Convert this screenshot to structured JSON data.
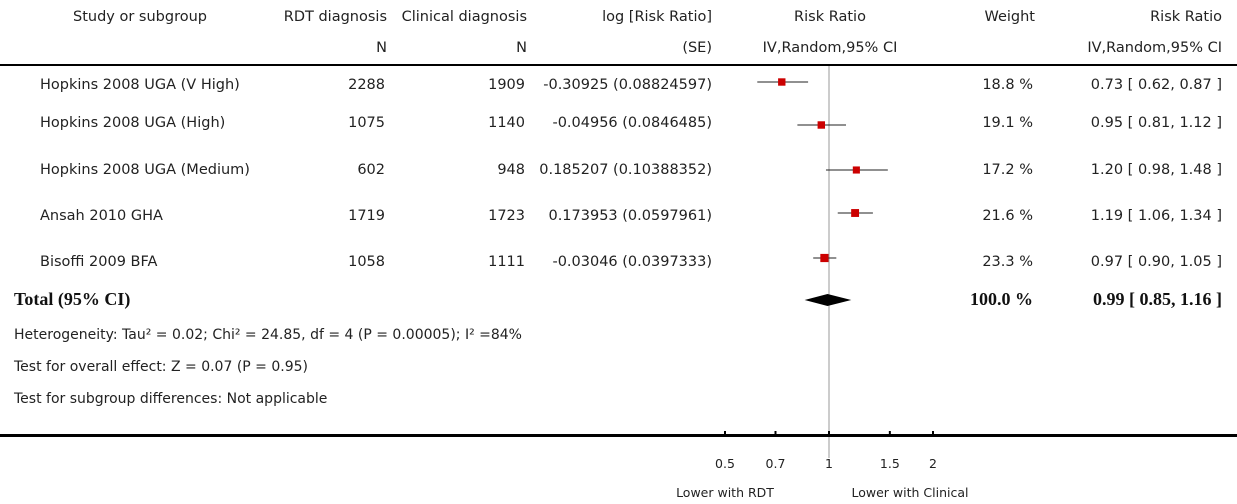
{
  "headers": {
    "study": "Study or subgroup",
    "rdt": "RDT diagnosis",
    "clinical": "Clinical diagnosis",
    "logrr": "log [Risk Ratio]",
    "rr": "Risk Ratio",
    "weight": "Weight",
    "rr2": "Risk Ratio",
    "rdt_sub": "N",
    "clinical_sub": "N",
    "logrr_sub": "(SE)",
    "rr_sub": "IV,Random,95% CI",
    "rr2_sub": "IV,Random,95% CI"
  },
  "rows": [
    {
      "study": "Hopkins 2008 UGA (V High)",
      "rdt_n": "2288",
      "clin_n": "1909",
      "logrr": "-0.30925 (0.08824597)",
      "weight": "18.8 %",
      "ci": "0.73 [ 0.62, 0.87 ]"
    },
    {
      "study": "Hopkins 2008 UGA (High)",
      "rdt_n": "1075",
      "clin_n": "1140",
      "logrr": "-0.04956 (0.0846485)",
      "weight": "19.1 %",
      "ci": "0.95 [ 0.81, 1.12 ]"
    },
    {
      "study": "Hopkins 2008 UGA (Medium)",
      "rdt_n": "602",
      "clin_n": "948",
      "logrr": "0.185207 (0.10388352)",
      "weight": "17.2 %",
      "ci": "1.20 [ 0.98, 1.48 ]"
    },
    {
      "study": "Ansah 2010 GHA",
      "rdt_n": "1719",
      "clin_n": "1723",
      "logrr": "0.173953 (0.0597961)",
      "weight": "21.6 %",
      "ci": "1.19 [ 1.06, 1.34 ]"
    },
    {
      "study": "Bisoffi 2009 BFA",
      "rdt_n": "1058",
      "clin_n": "1111",
      "logrr": "-0.03046 (0.0397333)",
      "weight": "23.3 %",
      "ci": "0.97 [ 0.90, 1.05 ]"
    }
  ],
  "total": {
    "label": "Total (95% CI)",
    "weight": "100.0 %",
    "ci": "0.99 [ 0.85, 1.16 ]"
  },
  "footer": {
    "heterogeneity": "Heterogeneity: Tau² = 0.02; Chi² = 24.85, df = 4 (P = 0.00005); I² =84%",
    "overall": "Test for overall effect: Z = 0.07 (P = 0.95)",
    "subgroup": "Test for subgroup differences: Not applicable"
  },
  "axis_labels": {
    "left": "Lower with RDT",
    "right": "Lower with Clinical"
  },
  "chart_data": {
    "type": "forest",
    "scale": "log",
    "x_ticks": [
      0.5,
      0.7,
      1,
      1.5,
      2
    ],
    "x_tick_labels": [
      "0.5",
      "0.7",
      "1",
      "1.5",
      "2"
    ],
    "xlim": [
      0.5,
      2
    ],
    "reference_line": 1,
    "marker_color": "#cc0000",
    "studies": [
      {
        "name": "Hopkins 2008 UGA (V High)",
        "rr": 0.73,
        "lower": 0.62,
        "upper": 0.87,
        "weight": 18.8
      },
      {
        "name": "Hopkins 2008 UGA (High)",
        "rr": 0.95,
        "lower": 0.81,
        "upper": 1.12,
        "weight": 19.1
      },
      {
        "name": "Hopkins 2008 UGA (Medium)",
        "rr": 1.2,
        "lower": 0.98,
        "upper": 1.48,
        "weight": 17.2
      },
      {
        "name": "Ansah 2010 GHA",
        "rr": 1.19,
        "lower": 1.06,
        "upper": 1.34,
        "weight": 21.6
      },
      {
        "name": "Bisoffi 2009 BFA",
        "rr": 0.97,
        "lower": 0.9,
        "upper": 1.05,
        "weight": 23.3
      }
    ],
    "pooled": {
      "rr": 0.99,
      "lower": 0.85,
      "upper": 1.16
    }
  }
}
